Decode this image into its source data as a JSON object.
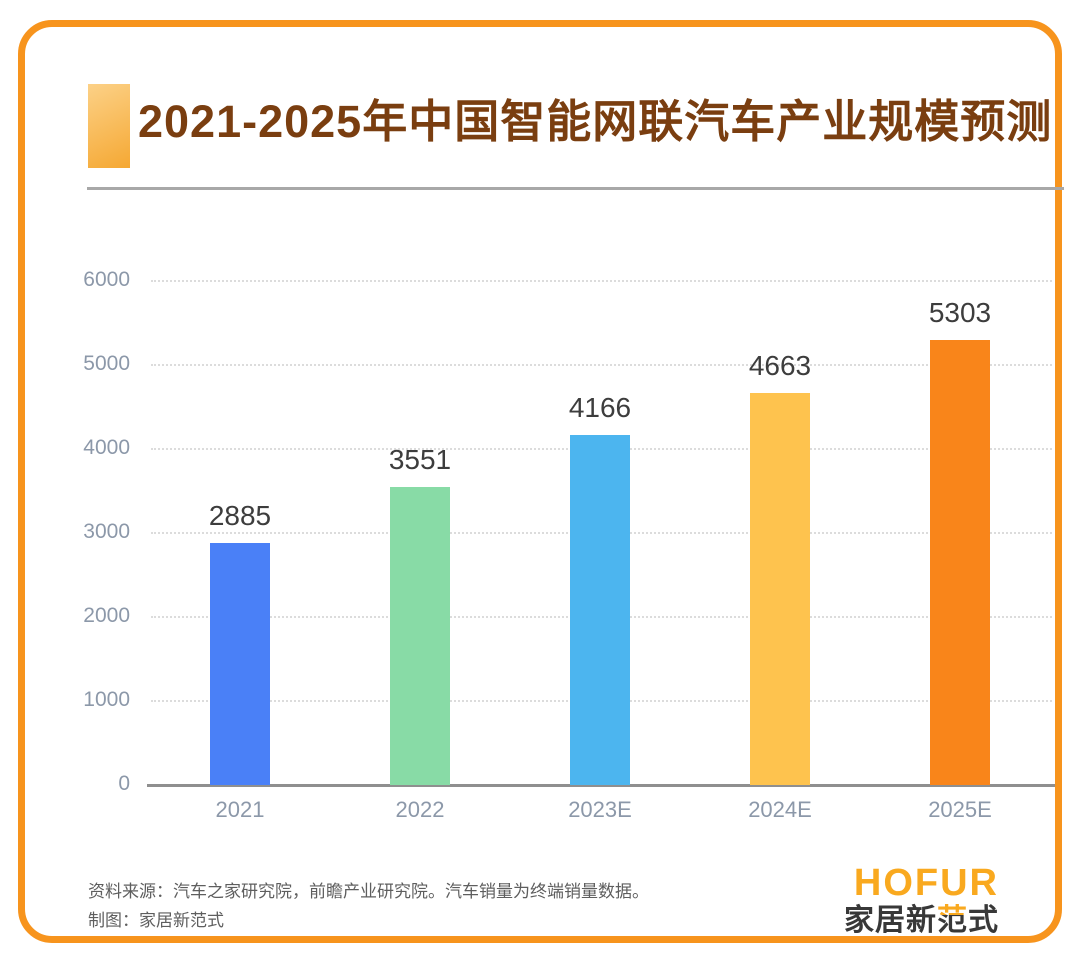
{
  "header": {
    "title": "2021-2025年中国智能网联汽车产业规模预测"
  },
  "chart_data": {
    "type": "bar",
    "title": "2021-2025年中国智能网联汽车产业规模预测",
    "xlabel": "",
    "ylabel": "",
    "categories": [
      "2021",
      "2022",
      "2023E",
      "2024E",
      "2025E"
    ],
    "values": [
      2885,
      3551,
      4166,
      4663,
      5303
    ],
    "bar_colors": [
      "#4A80F7",
      "#88DBA6",
      "#4CB5EF",
      "#FEC34E",
      "#F9851A"
    ],
    "ylim": [
      0,
      6000
    ],
    "yticks": [
      0,
      1000,
      2000,
      3000,
      4000,
      5000,
      6000
    ],
    "grid": "horizontal-dotted",
    "legend": "none",
    "value_labels": "above-bars"
  },
  "footer": {
    "source_line": "资料来源：汽车之家研究院，前瞻产业研究院。汽车销量为终端销量数据。",
    "credit_line": "制图：家居新范式",
    "logo_en": "HOFUR",
    "logo_cn_pre": "家居新",
    "logo_cn_accent": "范",
    "logo_cn_post": "式"
  },
  "colors": {
    "border": "#F7941D",
    "title_text": "#7A3E10",
    "accent_gradient": [
      "#FCD187",
      "#F5A833"
    ],
    "divider": "#A8A8A8",
    "axis_line": "#8F8F8F",
    "gridline": "#DCDCDC",
    "tick_label": "#8C98A9",
    "value_label": "#3D3D3D",
    "footer_text": "#5E5E5E",
    "logo_orange": "#F9A91F",
    "logo_dark": "#383838"
  }
}
